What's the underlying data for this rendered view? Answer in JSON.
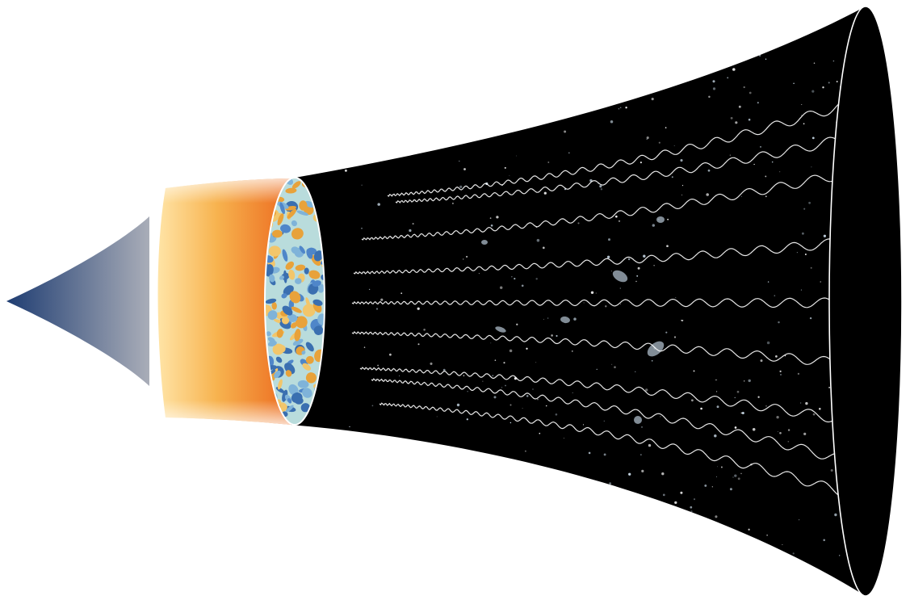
{
  "diagram": {
    "type": "cosmic-timeline-funnel",
    "stages": [
      {
        "id": "inflation",
        "shape": "cone-tip"
      },
      {
        "id": "hot-plasma",
        "shape": "glowing-band"
      },
      {
        "id": "cosmic-microwave-background",
        "shape": "speckled-ellipse"
      },
      {
        "id": "galaxy-era",
        "shape": "dark-expanding-funnel"
      }
    ],
    "light_wave_count": 9,
    "colors": {
      "background": "#ffffff",
      "inflation_tip": "#1f3d72",
      "inflation_base": "#a9adb8",
      "plasma_light": "#ffe4a6",
      "plasma_dark": "#ec6a1f",
      "cmb_blue": "#4f86c9",
      "cmb_orange": "#e8a23a",
      "cmb_pale": "#b9dcdc",
      "space": "#000000",
      "wave": "#ffffff"
    }
  }
}
